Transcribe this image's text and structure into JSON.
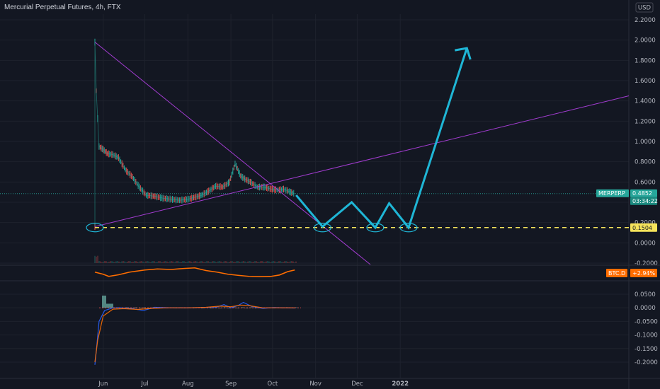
{
  "header": {
    "title": "Mercurial Perpetual Futures, 4h, FTX",
    "currency_button": "USD"
  },
  "colors": {
    "background": "#131722",
    "candle_up": "#26a69a",
    "candle_down": "#ef5350",
    "drawing_cyan": "#1fb6d6",
    "trendline_purple": "#a23cd0",
    "support_yellow": "#f5e35b",
    "btc_d_orange": "#ff6d00"
  },
  "chart_data": [
    {
      "type": "line",
      "panel": "price",
      "symbol_label": "MERPERP",
      "ylim": [
        -0.2,
        2.2
      ],
      "yticks": [
        "2.2000",
        "2.0000",
        "1.8000",
        "1.6000",
        "1.4000",
        "1.2000",
        "1.0000",
        "0.8000",
        "0.6000",
        "0.4000",
        "0.2000",
        "0.0000",
        "-0.2000"
      ],
      "xticks": [
        "Jun",
        "Jul",
        "Aug",
        "Sep",
        "Oct",
        "Nov",
        "Dec",
        "2022"
      ],
      "last_price": {
        "value": "0.4852",
        "countdown": "03:34:22"
      },
      "support_level": {
        "value": 0.1504,
        "label": "0.1504"
      },
      "series": [
        {
          "x": [
            "2021-05-26",
            "2021-05-26",
            "2021-05-27",
            "2021-05-29",
            "2021-06-01",
            "2021-06-04",
            "2021-06-08",
            "2021-06-12",
            "2021-06-17",
            "2021-06-22",
            "2021-06-27",
            "2021-07-02",
            "2021-07-08",
            "2021-07-14",
            "2021-07-20",
            "2021-07-26",
            "2021-08-01",
            "2021-08-06",
            "2021-08-11",
            "2021-08-16",
            "2021-08-21",
            "2021-08-26",
            "2021-08-31",
            "2021-09-04",
            "2021-09-08",
            "2021-09-11",
            "2021-09-15",
            "2021-09-20",
            "2021-09-25",
            "2021-09-30",
            "2021-10-05",
            "2021-10-09",
            "2021-10-14",
            "2021-10-17"
          ],
          "y": [
            0.16,
            1.98,
            1.5,
            0.95,
            0.92,
            0.88,
            0.87,
            0.84,
            0.72,
            0.65,
            0.55,
            0.47,
            0.46,
            0.44,
            0.43,
            0.42,
            0.43,
            0.45,
            0.47,
            0.51,
            0.56,
            0.55,
            0.6,
            0.78,
            0.66,
            0.63,
            0.6,
            0.55,
            0.55,
            0.53,
            0.52,
            0.53,
            0.5,
            0.485
          ]
        }
      ],
      "annotations": {
        "projected_path": [
          {
            "x": "2021-10-18",
            "y": 0.47
          },
          {
            "x": "2021-11-06",
            "y": 0.16
          },
          {
            "x": "2021-11-27",
            "y": 0.4
          },
          {
            "x": "2021-12-14",
            "y": 0.15
          },
          {
            "x": "2021-12-24",
            "y": 0.39
          },
          {
            "x": "2022-01-07",
            "y": 0.15
          },
          {
            "x": "2022-02-18",
            "y": 1.92
          }
        ],
        "ellipses_at_support": [
          "2021-05-26",
          "2021-11-06",
          "2021-12-14",
          "2022-01-07"
        ]
      }
    },
    {
      "type": "line",
      "panel": "btc_dominance",
      "label": "BTC.D",
      "value_label": "+2.94%",
      "x": [
        "2021-05-26",
        "2021-06-01",
        "2021-06-05",
        "2021-06-12",
        "2021-06-20",
        "2021-07-01",
        "2021-07-10",
        "2021-07-20",
        "2021-07-30",
        "2021-08-06",
        "2021-08-14",
        "2021-08-22",
        "2021-08-30",
        "2021-09-06",
        "2021-09-14",
        "2021-09-22",
        "2021-09-30",
        "2021-10-06",
        "2021-10-12",
        "2021-10-17"
      ],
      "y": [
        0.55,
        0.35,
        0.15,
        0.3,
        0.55,
        0.75,
        0.85,
        0.8,
        0.9,
        0.95,
        0.7,
        0.55,
        0.35,
        0.25,
        0.15,
        0.12,
        0.15,
        0.28,
        0.6,
        0.75
      ]
    },
    {
      "type": "line",
      "panel": "oscillator",
      "ylim": [
        -0.225,
        0.06
      ],
      "yticks": [
        "0.0500",
        "0.0000",
        "-0.0500",
        "-0.1000",
        "-0.1500",
        "-0.2000"
      ],
      "series": [
        {
          "x": [
            "2021-05-26",
            "2021-05-27",
            "2021-05-29",
            "2021-06-02",
            "2021-06-08",
            "2021-06-14",
            "2021-06-22",
            "2021-06-30",
            "2021-07-08",
            "2021-07-20",
            "2021-08-01",
            "2021-08-12",
            "2021-08-22",
            "2021-08-27",
            "2021-09-01",
            "2021-09-06",
            "2021-09-10",
            "2021-09-16",
            "2021-09-24",
            "2021-10-02",
            "2021-10-10",
            "2021-10-17"
          ],
          "y": [
            -0.21,
            -0.16,
            -0.05,
            -0.01,
            0.0,
            0.0,
            -0.003,
            -0.01,
            0.002,
            0.0,
            0.0,
            0.001,
            0.003,
            0.012,
            0.0,
            0.008,
            0.02,
            0.005,
            -0.002,
            0.001,
            0.0,
            -0.001
          ]
        },
        {
          "x": [
            "2021-05-26",
            "2021-05-28",
            "2021-06-01",
            "2021-06-08",
            "2021-06-16",
            "2021-06-26",
            "2021-07-06",
            "2021-07-18",
            "2021-08-01",
            "2021-08-14",
            "2021-08-24",
            "2021-09-01",
            "2021-09-08",
            "2021-09-14",
            "2021-09-24",
            "2021-10-06",
            "2021-10-17"
          ],
          "y": [
            -0.2,
            -0.12,
            -0.03,
            -0.005,
            -0.003,
            -0.006,
            -0.002,
            0.0,
            0.0,
            0.002,
            0.006,
            0.004,
            0.01,
            0.008,
            0.0,
            0.0,
            0.0
          ]
        }
      ]
    }
  ]
}
